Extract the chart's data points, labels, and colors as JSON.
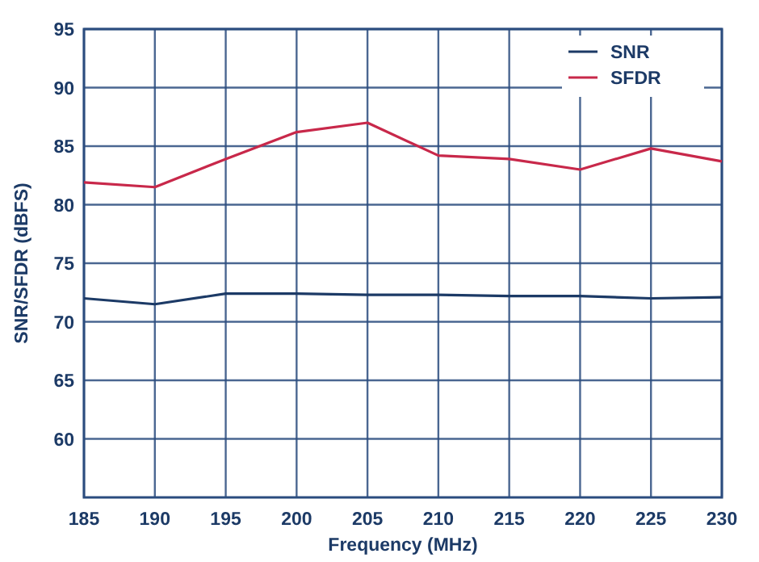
{
  "chart_data": {
    "type": "line",
    "xlabel": "Frequency (MHz)",
    "ylabel": "SNR/SFDR (dBFS)",
    "x": [
      185,
      190,
      195,
      200,
      205,
      210,
      215,
      220,
      225,
      230
    ],
    "series": [
      {
        "name": "SNR",
        "color": "#1c3a66",
        "values": [
          72.0,
          71.5,
          72.4,
          72.4,
          72.3,
          72.3,
          72.2,
          72.2,
          72.0,
          72.1
        ]
      },
      {
        "name": "SFDR",
        "color": "#c8284a",
        "values": [
          81.9,
          81.5,
          83.9,
          86.2,
          87.0,
          84.2,
          83.9,
          83.0,
          84.8,
          83.7
        ]
      }
    ],
    "xlim": [
      185,
      230
    ],
    "xticks": [
      185,
      190,
      195,
      200,
      205,
      210,
      215,
      220,
      225,
      230
    ],
    "ylim": [
      55,
      95
    ],
    "yticks": [
      60,
      65,
      70,
      75,
      80,
      85,
      90,
      95
    ],
    "grid": true,
    "legend": "top right",
    "marker": "none",
    "line_style": "solid"
  }
}
